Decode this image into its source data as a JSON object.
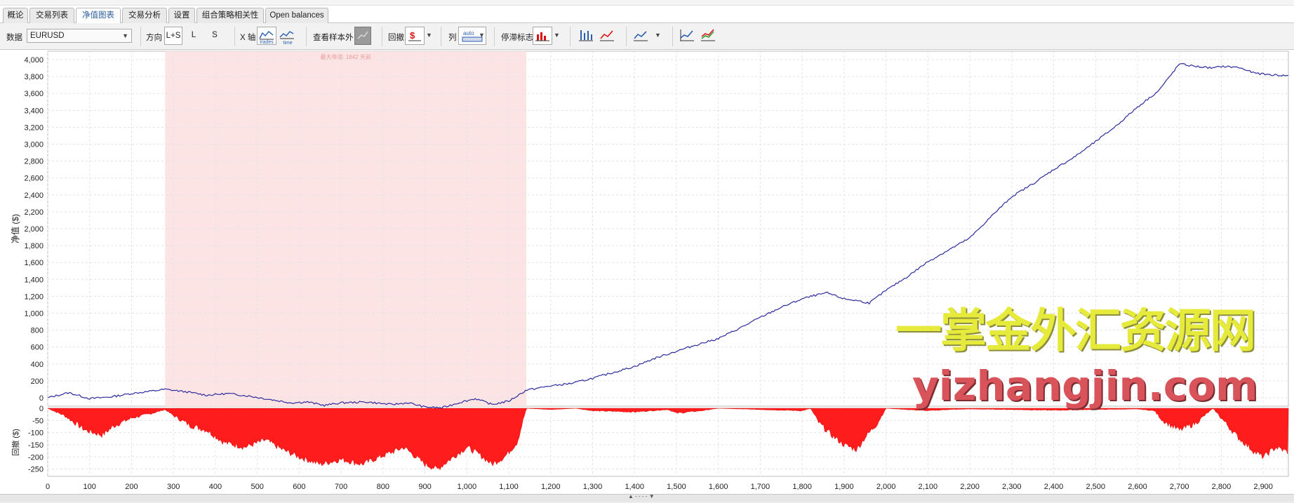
{
  "tabs": [
    {
      "label": "概论",
      "active": false
    },
    {
      "label": "交易列表",
      "active": false
    },
    {
      "label": "净值图表",
      "active": true
    },
    {
      "label": "交易分析",
      "active": false
    },
    {
      "label": "设置",
      "active": false
    },
    {
      "label": "组合策略相关性",
      "active": false
    },
    {
      "label": "Open balances",
      "active": false
    }
  ],
  "toolbar": {
    "data_label": "数据",
    "data_value": "EURUSD",
    "direction_label": "方向",
    "direction_options": [
      "L+S",
      "L",
      "S"
    ],
    "direction_selected": "L+S",
    "xaxis_label": "X 轴",
    "xaxis_trades": "trades",
    "xaxis_time": "time",
    "oos_label": "查看样本外",
    "drawdown_label": "回撤",
    "drawdown_icon": "dollar-drawdown-icon",
    "columns_label": "列",
    "columns_icon_text": "auto",
    "stagnation_label": "停滞标志"
  },
  "chart_data": [
    {
      "type": "line",
      "name": "equity",
      "ylabel": "净值 ($)",
      "xlim": [
        0,
        2960
      ],
      "ylim": [
        -100,
        4100
      ],
      "y_ticks": [
        0,
        200,
        400,
        600,
        800,
        1000,
        1200,
        1400,
        1600,
        1800,
        2000,
        2200,
        2400,
        2600,
        2800,
        3000,
        3200,
        3400,
        3600,
        3800,
        4000
      ],
      "y_tick_labels": [
        "0",
        "200",
        "400",
        "600",
        "800",
        "1,000",
        "1,200",
        "1,400",
        "1,600",
        "1,800",
        "2,000",
        "2,200",
        "2,400",
        "2,600",
        "2,800",
        "3,000",
        "3,200",
        "3,400",
        "3,600",
        "3,800",
        "4,000"
      ],
      "color": "#2b2b9e",
      "stagnation": {
        "x_start": 280,
        "x_end": 1142,
        "label": "最大停滞: 1842 天前",
        "color": "#fde4e4"
      },
      "x": [
        0,
        50,
        100,
        150,
        200,
        250,
        280,
        330,
        380,
        430,
        480,
        530,
        580,
        620,
        660,
        700,
        760,
        820,
        860,
        900,
        940,
        980,
        1020,
        1060,
        1100,
        1142,
        1200,
        1250,
        1300,
        1350,
        1400,
        1450,
        1500,
        1550,
        1600,
        1650,
        1700,
        1750,
        1800,
        1830,
        1860,
        1900,
        1930,
        1960,
        2000,
        2050,
        2100,
        2150,
        2200,
        2250,
        2300,
        2350,
        2400,
        2450,
        2500,
        2550,
        2600,
        2650,
        2680,
        2700,
        2740,
        2780,
        2800,
        2840,
        2880,
        2920,
        2960
      ],
      "y": [
        0,
        60,
        -10,
        10,
        50,
        80,
        100,
        70,
        30,
        50,
        20,
        -20,
        -60,
        -50,
        -90,
        -60,
        -50,
        -80,
        -60,
        -110,
        -120,
        -60,
        -10,
        -80,
        -40,
        90,
        140,
        170,
        230,
        300,
        370,
        470,
        550,
        630,
        700,
        820,
        950,
        1070,
        1170,
        1210,
        1240,
        1170,
        1150,
        1120,
        1270,
        1430,
        1610,
        1750,
        1890,
        2140,
        2380,
        2530,
        2700,
        2850,
        3030,
        3220,
        3440,
        3630,
        3820,
        3950,
        3920,
        3900,
        3920,
        3910,
        3840,
        3820,
        3810
      ]
    },
    {
      "type": "area",
      "name": "drawdown",
      "ylabel": "回撤 ($)",
      "xlim": [
        0,
        2960
      ],
      "ylim": [
        -280,
        0
      ],
      "y_ticks": [
        0,
        -50,
        -100,
        -150,
        -200,
        -250
      ],
      "y_tick_labels": [
        "0",
        "-50",
        "-100",
        "-150",
        "-200",
        "-250"
      ],
      "color": "#ff1c1c",
      "x": [
        0,
        40,
        90,
        130,
        160,
        200,
        250,
        280,
        300,
        340,
        380,
        420,
        470,
        520,
        560,
        600,
        650,
        700,
        750,
        800,
        850,
        900,
        930,
        960,
        1000,
        1030,
        1060,
        1090,
        1120,
        1142,
        1200,
        1260,
        1300,
        1400,
        1480,
        1500,
        1560,
        1600,
        1700,
        1800,
        1820,
        1840,
        1870,
        1900,
        1930,
        1950,
        1980,
        2000,
        2050,
        2100,
        2150,
        2200,
        2300,
        2400,
        2500,
        2600,
        2640,
        2660,
        2700,
        2740,
        2780,
        2800,
        2840,
        2880,
        2900,
        2930,
        2960
      ],
      "y": [
        0,
        -30,
        -90,
        -110,
        -70,
        -40,
        -20,
        -5,
        -30,
        -70,
        -90,
        -140,
        -160,
        -130,
        -170,
        -200,
        -230,
        -210,
        -230,
        -195,
        -160,
        -230,
        -250,
        -210,
        -160,
        -190,
        -230,
        -200,
        -140,
        0,
        -5,
        0,
        -10,
        -15,
        -5,
        -20,
        -10,
        0,
        -5,
        -10,
        0,
        -60,
        -110,
        -150,
        -170,
        -120,
        -60,
        0,
        -5,
        -10,
        -5,
        -3,
        -5,
        -8,
        -5,
        -3,
        -10,
        -50,
        -90,
        -60,
        0,
        -40,
        -120,
        -180,
        -200,
        -160,
        -180
      ]
    }
  ],
  "x_tick_labels": [
    "0",
    "100",
    "200",
    "300",
    "400",
    "500",
    "600",
    "700",
    "800",
    "900",
    "1,000",
    "1,100",
    "1,200",
    "1,300",
    "1,400",
    "1,500",
    "1,600",
    "1,700",
    "1,800",
    "1,900",
    "2,000",
    "2,100",
    "2,200",
    "2,300",
    "2,400",
    "2,500",
    "2,600",
    "2,700",
    "2,800",
    "2,900"
  ],
  "watermark": {
    "cn": "一掌金外汇资源网",
    "en": "yizhangjin.com"
  },
  "bottom_handle": "▲ - - - - ▼"
}
